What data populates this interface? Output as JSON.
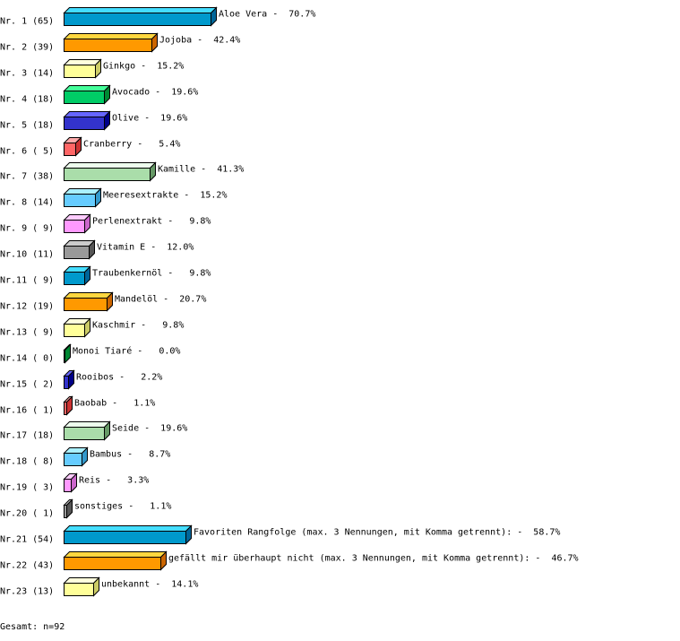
{
  "chart_data": {
    "type": "bar",
    "orientation": "horizontal",
    "style": "3d",
    "unit": "%",
    "categories": [
      "Aloe Vera",
      "Jojoba",
      "Ginkgo",
      "Avocado",
      "Olive",
      "Cranberry",
      "Kamille",
      "Meeresextrakte",
      "Perlenextrakt",
      "Vitamin E",
      "Traubenkernöl",
      "Mandelöl",
      "Kaschmir",
      "Monoi Tiaré",
      "Rooibos",
      "Baobab",
      "Seide",
      "Bambus",
      "Reis",
      "sonstiges",
      "Favoriten Rangfolge (max. 3 Nennungen, mit Komma getrennt):",
      "gefällt mir überhaupt nicht (max. 3 Nennungen, mit Komma getrennt):",
      "unbekannt"
    ],
    "rank_labels": [
      "Nr. 1 (65)",
      "Nr. 2 (39)",
      "Nr. 3 (14)",
      "Nr. 4 (18)",
      "Nr. 5 (18)",
      "Nr. 6 ( 5)",
      "Nr. 7 (38)",
      "Nr. 8 (14)",
      "Nr. 9 ( 9)",
      "Nr.10 (11)",
      "Nr.11 ( 9)",
      "Nr.12 (19)",
      "Nr.13 ( 9)",
      "Nr.14 ( 0)",
      "Nr.15 ( 2)",
      "Nr.16 ( 1)",
      "Nr.17 (18)",
      "Nr.18 ( 8)",
      "Nr.19 ( 3)",
      "Nr.20 ( 1)",
      "Nr.21 (54)",
      "Nr.22 (43)",
      "Nr.23 (13)"
    ],
    "counts": [
      65,
      39,
      14,
      18,
      18,
      5,
      38,
      14,
      9,
      11,
      9,
      19,
      9,
      0,
      2,
      1,
      18,
      8,
      3,
      1,
      54,
      43,
      13
    ],
    "values": [
      70.7,
      42.4,
      15.2,
      19.6,
      19.6,
      5.4,
      41.3,
      15.2,
      9.8,
      12.0,
      9.8,
      20.7,
      9.8,
      0.0,
      2.2,
      1.1,
      19.6,
      8.7,
      3.3,
      1.1,
      58.7,
      46.7,
      14.1
    ],
    "value_labels": [
      "70.7%",
      "42.4%",
      "15.2%",
      "19.6%",
      "19.6%",
      "5.4%",
      "41.3%",
      "15.2%",
      "9.8%",
      "12.0%",
      "9.8%",
      "20.7%",
      "9.8%",
      "0.0%",
      "2.2%",
      "1.1%",
      "19.6%",
      "8.7%",
      "3.3%",
      "1.1%",
      "58.7%",
      "46.7%",
      "14.1%"
    ],
    "palette": [
      {
        "front": "#0099cc",
        "top": "#44ddff",
        "side": "#006699"
      },
      {
        "front": "#ff9900",
        "top": "#ffd740",
        "side": "#cc6600"
      },
      {
        "front": "#ffff99",
        "top": "#ffffdd",
        "side": "#cccc66"
      },
      {
        "front": "#00cc66",
        "top": "#44ff99",
        "side": "#008833"
      },
      {
        "front": "#3333cc",
        "top": "#6666ff",
        "side": "#000088"
      },
      {
        "front": "#ff6666",
        "top": "#ffaaaa",
        "side": "#cc3333"
      },
      {
        "front": "#aaddaa",
        "top": "#eeffee",
        "side": "#669966"
      },
      {
        "front": "#66ccff",
        "top": "#aaf0ff",
        "side": "#3399cc"
      },
      {
        "front": "#ff99ff",
        "top": "#ffccff",
        "side": "#cc66cc"
      },
      {
        "front": "#999999",
        "top": "#cccccc",
        "side": "#555555"
      }
    ],
    "xlim": [
      0,
      100
    ],
    "grid": false
  },
  "footer": "Gesamt: n=92"
}
